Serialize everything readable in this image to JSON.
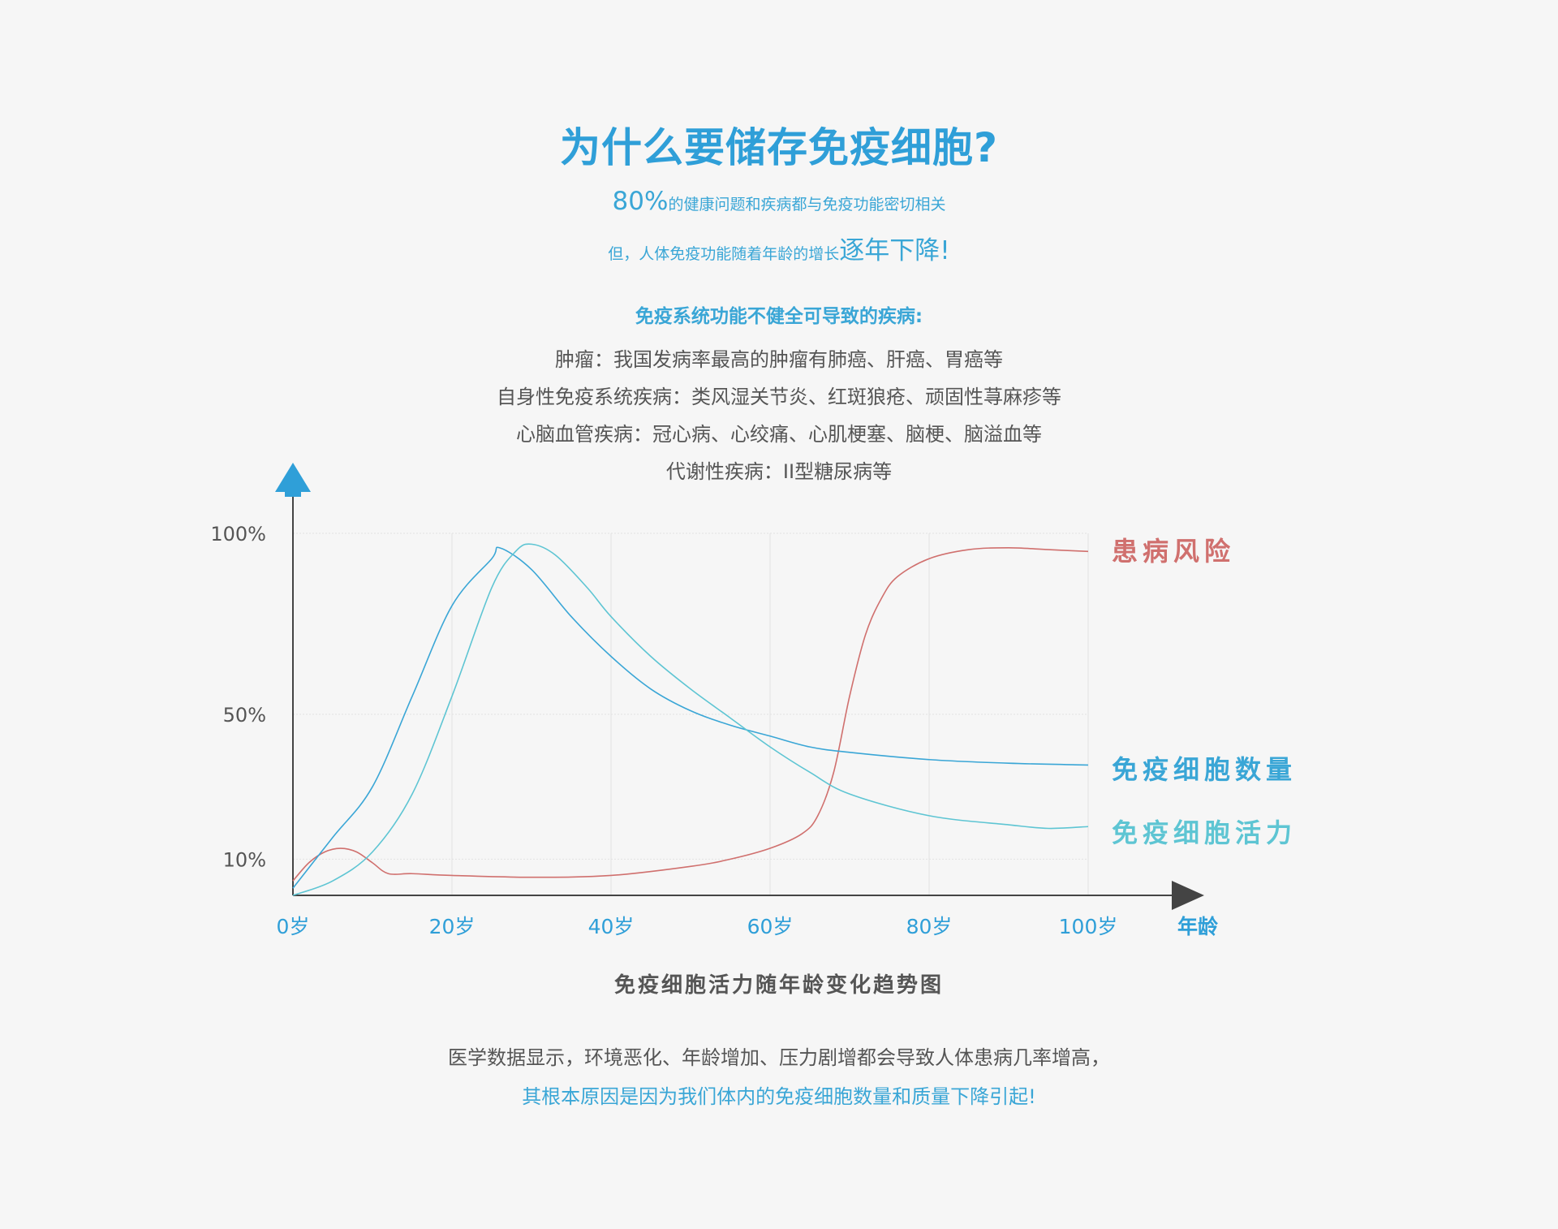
{
  "header": {
    "title": "为什么要储存免疫细胞?",
    "line1_big": "80%",
    "line1_small": "的健康问题和疾病都与免疫功能密切相关",
    "line2_small": "但，人体免疫功能随着年龄的增长",
    "line2_big": "逐年下降!"
  },
  "diseases": {
    "heading": "免疫系统功能不健全可导致的疾病:",
    "items": [
      "肿瘤：我国发病率最高的肿瘤有肺癌、肝癌、胃癌等",
      "自身性免疫系统疾病：类风湿关节炎、红斑狼疮、顽固性荨麻疹等",
      "心脑血管疾病：冠心病、心绞痛、心肌梗塞、脑梗、脑溢血等",
      "代谢性疾病：II型糖尿病等"
    ]
  },
  "chart_data": {
    "type": "line",
    "title": "免疫细胞活力随年龄变化趋势图",
    "xlabel": "年龄",
    "ylabel": "",
    "x_ticks": [
      "0岁",
      "20岁",
      "40岁",
      "60岁",
      "80岁",
      "100岁"
    ],
    "y_ticks": [
      "100%",
      "50%",
      "10%"
    ],
    "xlim": [
      0,
      100
    ],
    "ylim": [
      0,
      100
    ],
    "grid": true,
    "series": [
      {
        "name": "患病风险",
        "color": "#d0706e",
        "x": [
          0,
          2,
          4,
          6,
          8,
          10,
          12,
          15,
          20,
          30,
          40,
          50,
          55,
          60,
          64,
          66,
          68,
          70,
          72,
          74,
          76,
          80,
          85,
          90,
          95,
          100
        ],
        "y": [
          4,
          9,
          12,
          13,
          12,
          9,
          6,
          6,
          5.5,
          5,
          5.5,
          8,
          10,
          13,
          17,
          22,
          34,
          55,
          72,
          82,
          88,
          93,
          95.5,
          96,
          95.5,
          95
        ]
      },
      {
        "name": "免疫细胞数量",
        "color": "#3aa6d6",
        "x": [
          0,
          5,
          10,
          15,
          20,
          25,
          26,
          30,
          35,
          40,
          45,
          50,
          55,
          60,
          65,
          70,
          80,
          90,
          100
        ],
        "y": [
          2,
          16,
          30,
          55,
          80,
          93,
          96,
          90,
          77,
          66,
          57,
          51,
          47,
          44,
          41,
          39.5,
          37.5,
          36.5,
          36
        ]
      },
      {
        "name": "免疫细胞活力",
        "color": "#5ec5d3",
        "x": [
          0,
          5,
          10,
          15,
          20,
          25,
          28,
          30,
          33,
          37,
          40,
          45,
          50,
          55,
          60,
          65,
          70,
          80,
          90,
          95,
          100
        ],
        "y": [
          0,
          4,
          12,
          28,
          55,
          85,
          95,
          97,
          94,
          85,
          77,
          66,
          57,
          49,
          41,
          34,
          28,
          22,
          19.5,
          18.5,
          19
        ]
      }
    ]
  },
  "footer": {
    "line1": "医学数据显示，环境恶化、年龄增加、压力剧增都会导致人体患病几率增高，",
    "line2": "其根本原因是因为我们体内的免疫细胞数量和质量下降引起!"
  }
}
